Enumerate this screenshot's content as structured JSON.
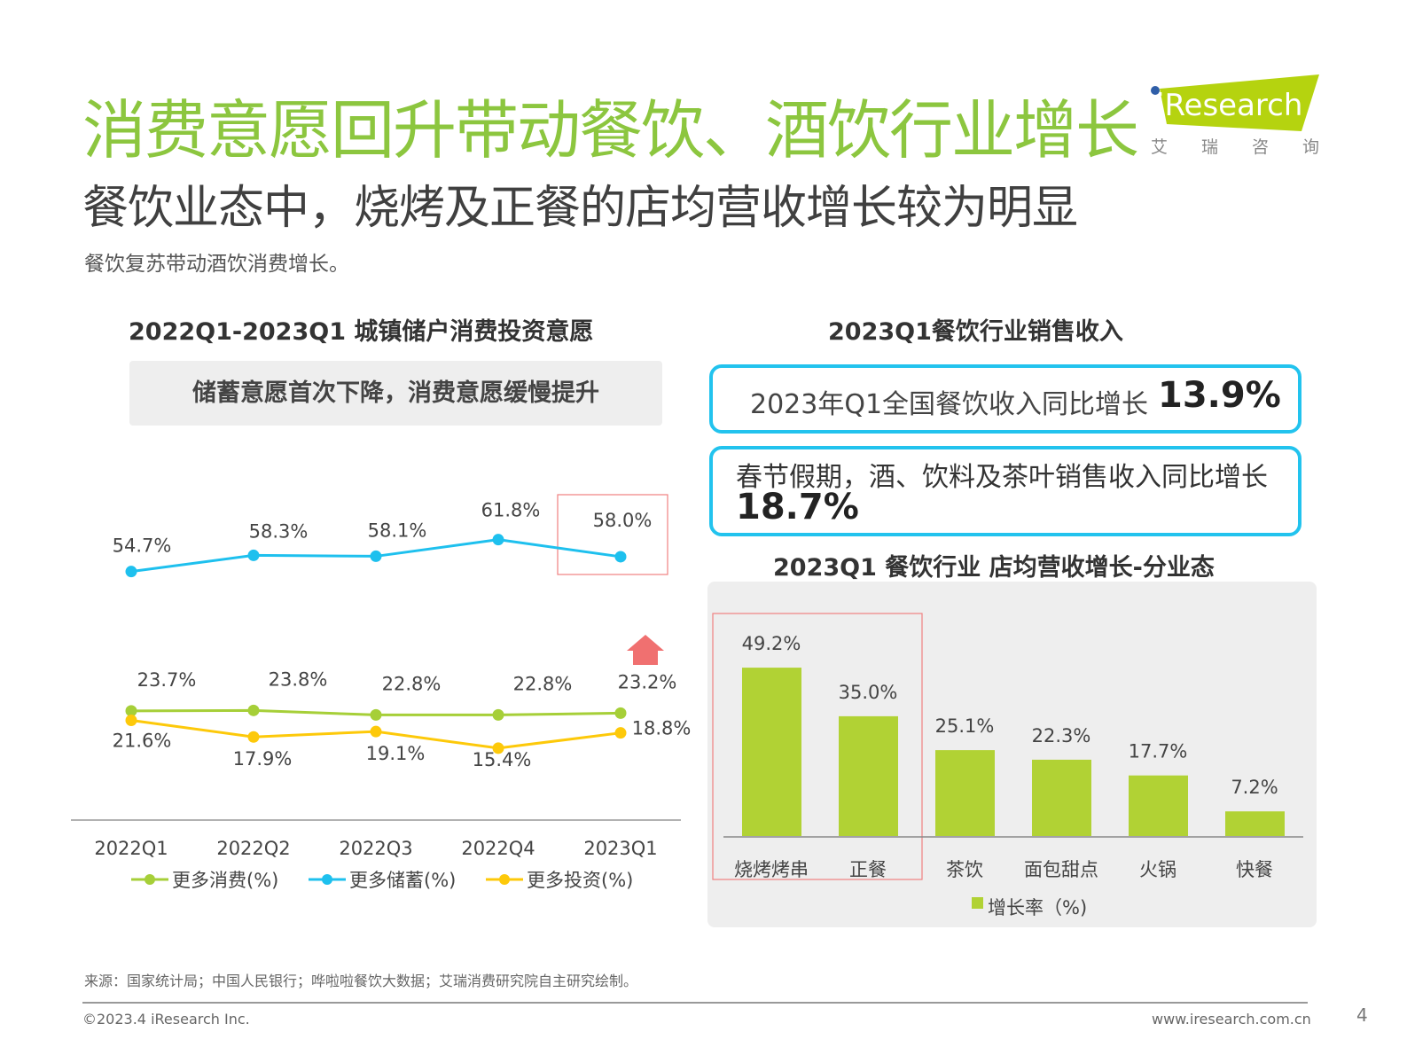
{
  "header": {
    "title": "消费意愿回升带动餐饮、酒饮行业增长",
    "subtitle": "餐饮业态中，烧烤及正餐的店均营收增长较为明显",
    "description": "餐饮复苏带动酒饮消费增长。"
  },
  "logo": {
    "text": "iResearch",
    "cn": "艾 瑞 咨 询",
    "color": "#b5d30f"
  },
  "left": {
    "title": "2022Q1-2023Q1 城镇储户消费投资意愿",
    "callout": "储蓄意愿首次下降，消费意愿缓慢提升"
  },
  "right": {
    "title": "2023Q1餐饮行业销售收入",
    "box1_text": "2023年Q1全国餐饮收入同比增长",
    "box1_value": "13.9%",
    "box2_text": "春节假期，酒、饮料及茶叶销售收入同比增长",
    "box2_value": "18.7%"
  },
  "chart_data": [
    {
      "type": "line",
      "categories": [
        "2022Q1",
        "2022Q2",
        "2022Q3",
        "2022Q4",
        "2023Q1"
      ],
      "series": [
        {
          "name": "更多消费(%)",
          "values": [
            23.7,
            23.8,
            22.8,
            22.8,
            23.2
          ],
          "labels": [
            "23.7%",
            "23.8%",
            "22.8%",
            "22.8%",
            "23.2%"
          ],
          "color": "#a6cf38"
        },
        {
          "name": "更多储蓄(%)",
          "values": [
            54.7,
            58.3,
            58.1,
            61.8,
            58.0
          ],
          "labels": [
            "54.7%",
            "58.3%",
            "58.1%",
            "61.8%",
            "58.0%"
          ],
          "color": "#1ec0ee"
        },
        {
          "name": "更多投资(%)",
          "values": [
            21.6,
            17.9,
            19.1,
            15.4,
            18.8
          ],
          "labels": [
            "21.6%",
            "17.9%",
            "19.1%",
            "15.4%",
            "18.8%"
          ],
          "color": "#fdc90a"
        }
      ],
      "legend": "bottom",
      "highlight": "2023Q1 储蓄 decrease box; up arrow above consumption"
    },
    {
      "type": "bar",
      "title": "2023Q1 餐饮行业 店均营收增长-分业态",
      "categories": [
        "烧烤烤串",
        "正餐",
        "茶饮",
        "面包甜点",
        "火锅",
        "快餐"
      ],
      "series": [
        {
          "name": "增长率（%)",
          "values": [
            49.2,
            35.0,
            25.1,
            22.3,
            17.7,
            7.2
          ],
          "labels": [
            "49.2%",
            "35.0%",
            "25.1%",
            "22.3%",
            "17.7%",
            "7.2%"
          ],
          "color": "#b1d234"
        }
      ],
      "legend": "bottom"
    }
  ],
  "footer": {
    "source": "来源：国家统计局；中国人民银行；哗啦啦餐饮大数据；艾瑞消费研究院自主研究绘制。",
    "copyright": "©2023.4 iResearch Inc.",
    "url": "www.iresearch.com.cn",
    "page": "4"
  }
}
